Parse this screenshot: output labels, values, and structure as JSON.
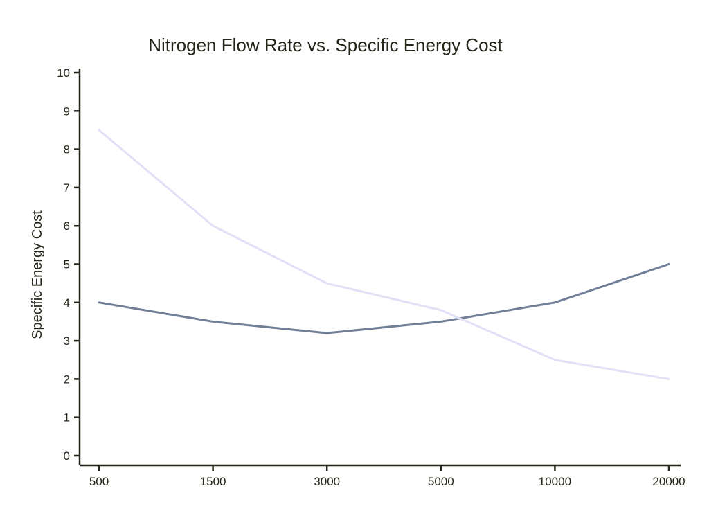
{
  "page": {
    "background": "#ffffff"
  },
  "chart_data": {
    "type": "line",
    "title": "Nitrogen Flow Rate vs. Specific Energy Cost",
    "xlabel": "",
    "ylabel": "Specific Energy Cost",
    "categories": [
      "500",
      "1500",
      "3000",
      "5000",
      "10000",
      "20000"
    ],
    "series": [
      {
        "name": "dark-slate-line",
        "color": "#707e98",
        "values": [
          4.0,
          3.5,
          3.2,
          3.5,
          4.0,
          5.0
        ]
      },
      {
        "name": "light-lavender-line",
        "color": "#e2e0f7",
        "values": [
          8.5,
          6.0,
          4.5,
          3.8,
          2.5,
          2.0
        ]
      }
    ],
    "ylim": [
      0,
      10
    ],
    "yticks": [
      0,
      1,
      2,
      3,
      4,
      5,
      6,
      7,
      8,
      9,
      10
    ],
    "grid": false,
    "legend": "none",
    "axis_color": "#252418"
  }
}
